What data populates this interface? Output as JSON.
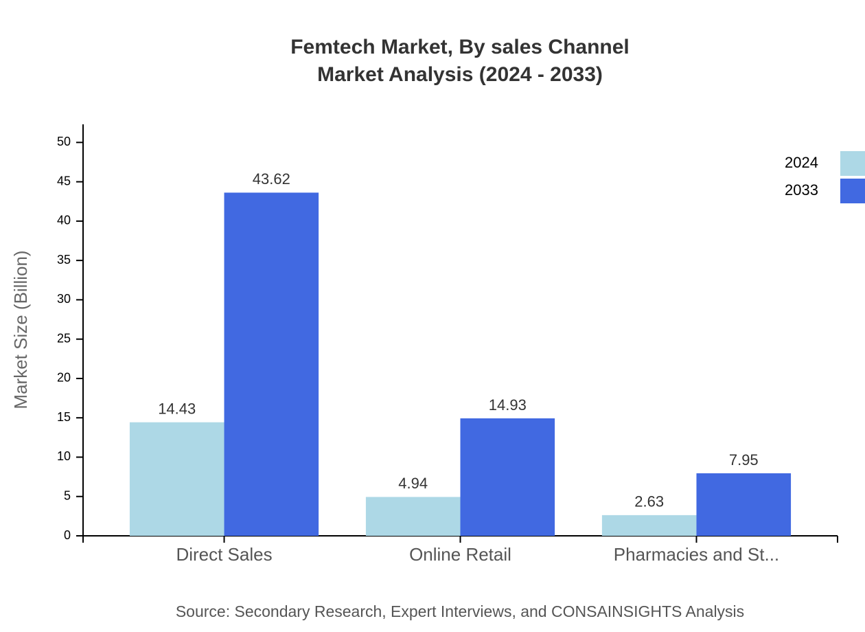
{
  "chart_data": {
    "type": "bar",
    "title": "Femtech Market, By sales Channel",
    "subtitle": "Market Analysis (2024 - 2033)",
    "y_label": "Market Size (Billion)",
    "source": "Source: Secondary Research, Expert Interviews, and CONSAINSIGHTS Analysis",
    "categories": [
      "Direct Sales",
      "Online Retail",
      "Pharmacies and St..."
    ],
    "series": [
      {
        "name": "2024",
        "color": "#add8e6",
        "values": [
          14.43,
          4.94,
          2.63
        ]
      },
      {
        "name": "2033",
        "color": "#4169e1",
        "values": [
          43.62,
          14.93,
          7.95
        ]
      }
    ],
    "ylim": [
      0,
      52.3
    ],
    "yticks": [
      0,
      5,
      10,
      15,
      20,
      25,
      30,
      35,
      40,
      45,
      50
    ],
    "grid": false,
    "legend": "top-right"
  }
}
